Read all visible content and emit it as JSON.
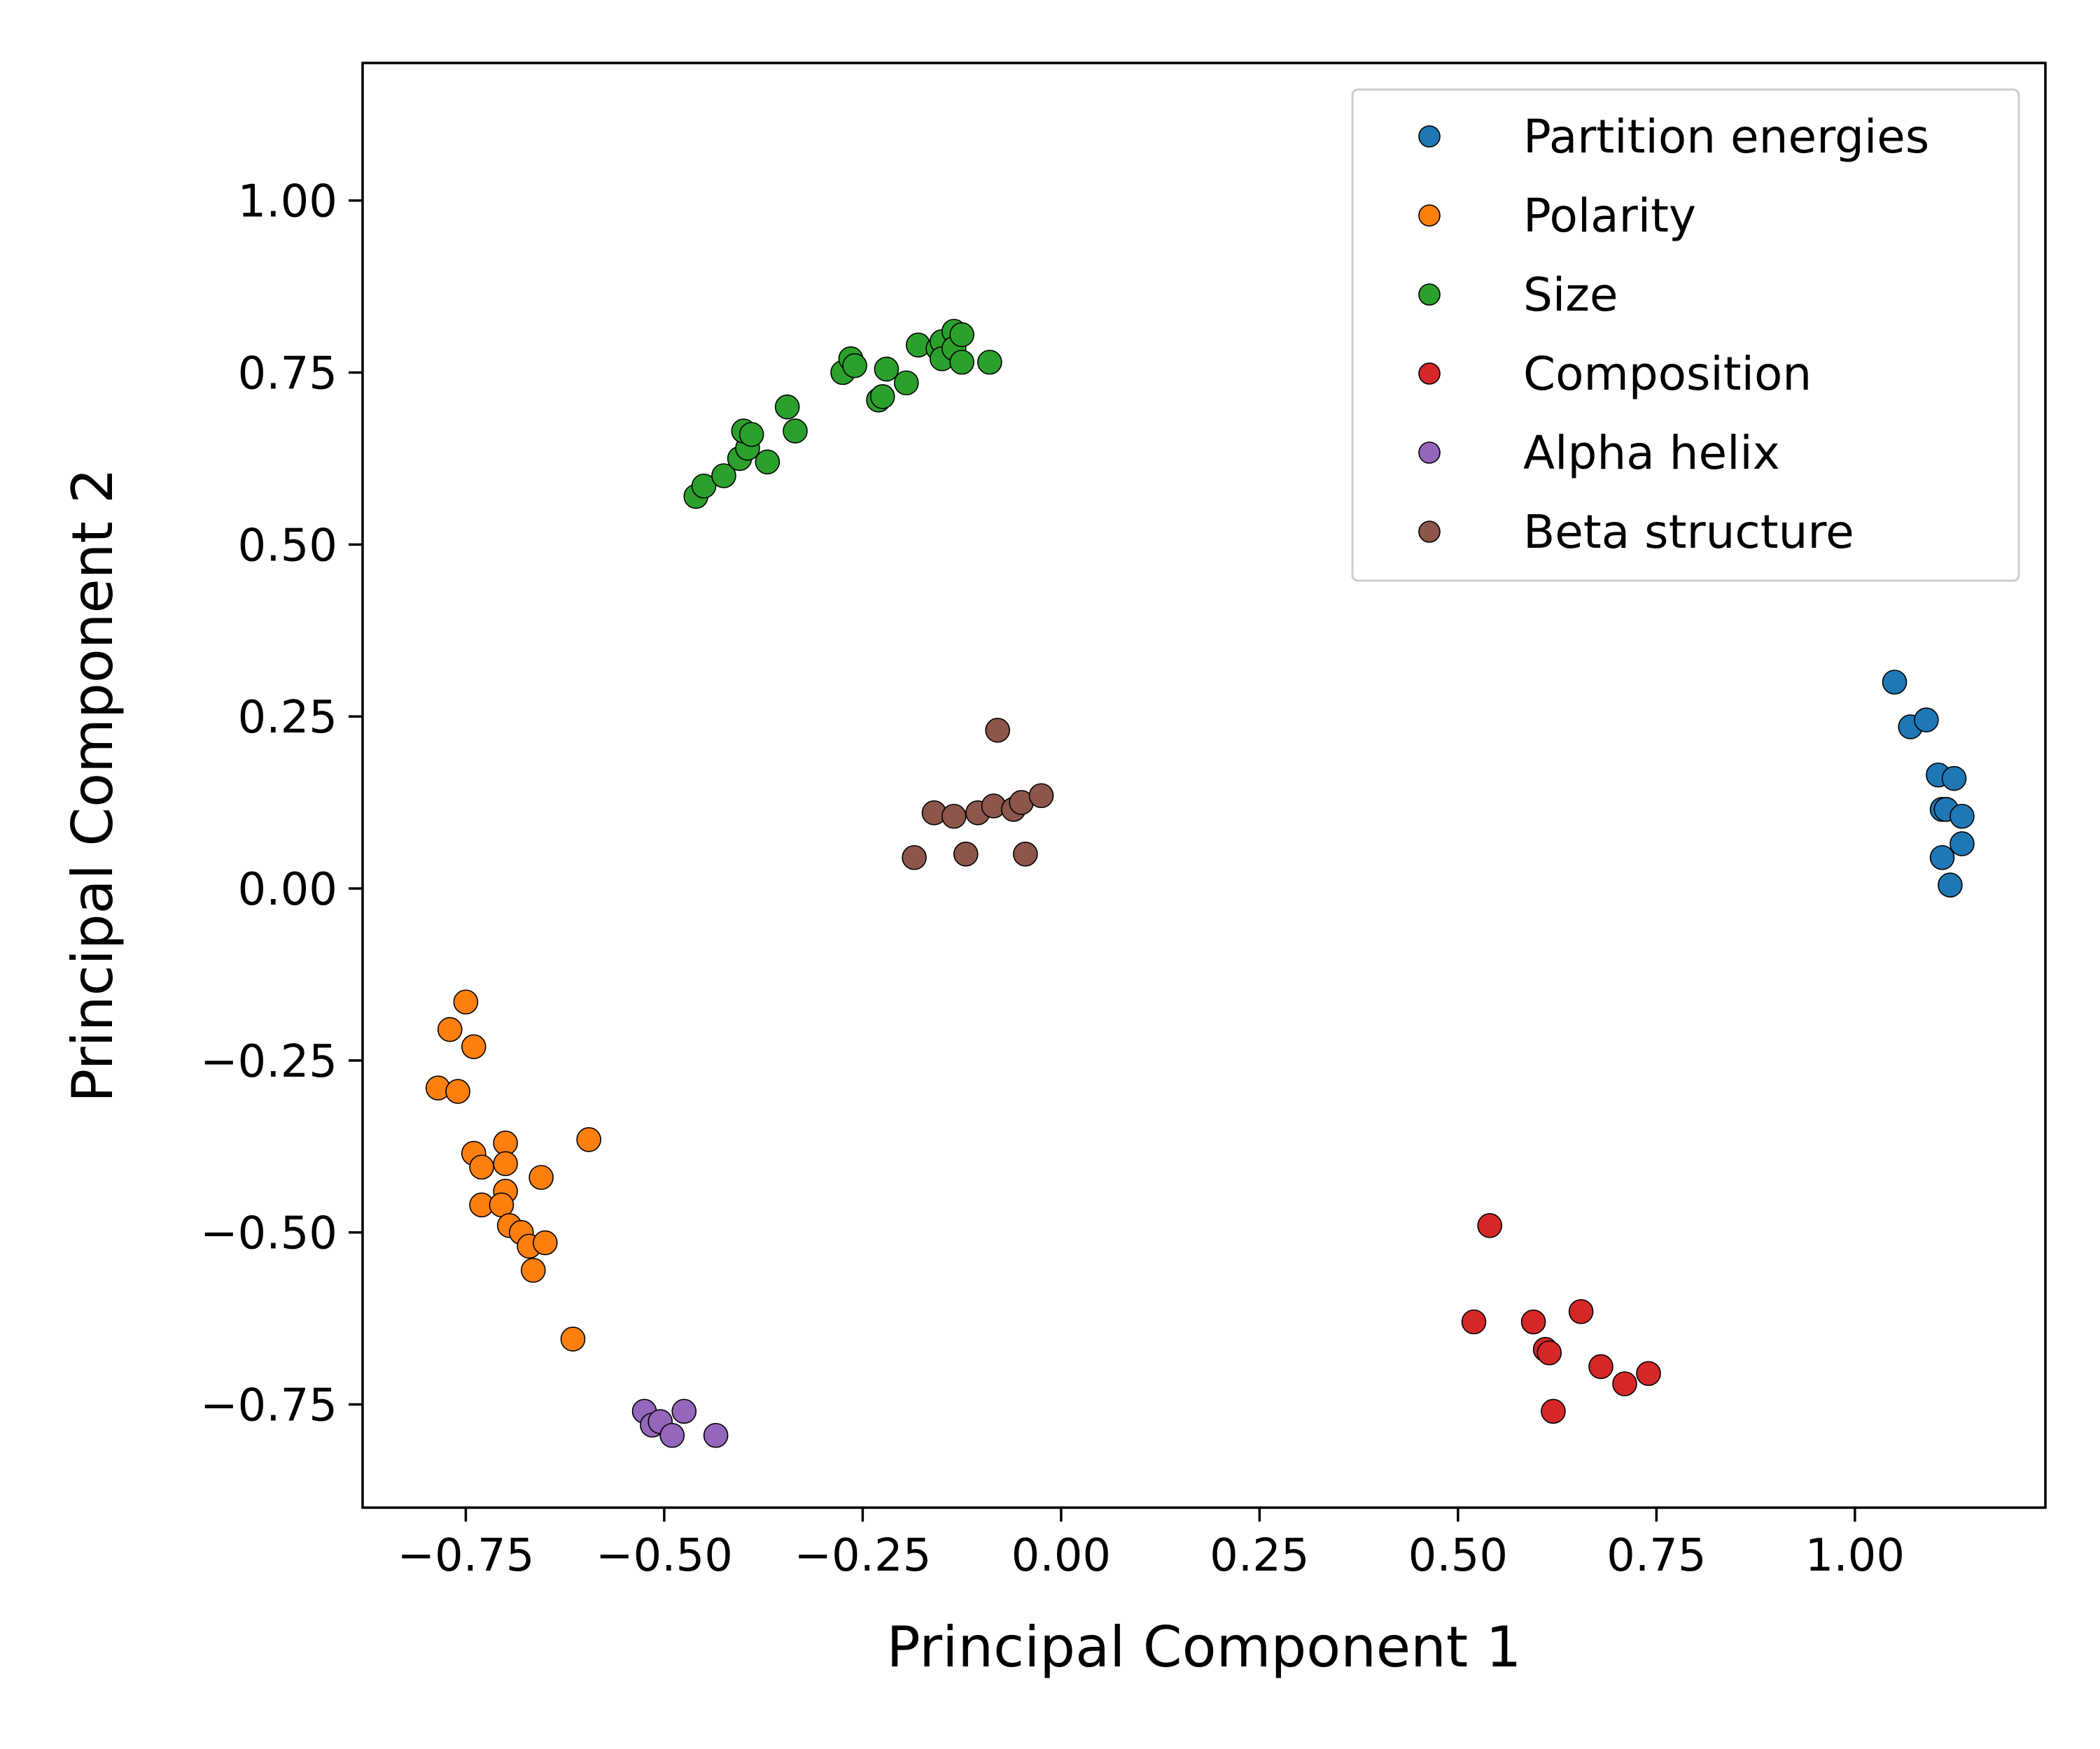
{
  "chart_data": {
    "type": "scatter",
    "title": "",
    "xlabel": "Principal Component 1",
    "ylabel": "Principal Component 2",
    "xlim": [
      -0.88,
      1.24
    ],
    "ylim": [
      -0.9,
      1.2
    ],
    "xticks": [
      -0.75,
      -0.5,
      -0.25,
      0.0,
      0.25,
      0.5,
      0.75,
      1.0
    ],
    "xtick_labels": [
      "−0.75",
      "−0.50",
      "−0.25",
      "0.00",
      "0.25",
      "0.50",
      "0.75",
      "1.00"
    ],
    "yticks": [
      -0.75,
      -0.5,
      -0.25,
      0.0,
      0.25,
      0.5,
      0.75,
      1.0
    ],
    "ytick_labels": [
      "−0.75",
      "−0.50",
      "−0.25",
      "0.00",
      "0.25",
      "0.50",
      "0.75",
      "1.00"
    ],
    "grid": false,
    "legend_position": "top-right",
    "series": [
      {
        "name": "Partition energies",
        "color": "#1f77b4",
        "points": [
          [
            1.05,
            0.3
          ],
          [
            1.07,
            0.235
          ],
          [
            1.09,
            0.245
          ],
          [
            1.105,
            0.165
          ],
          [
            1.11,
            0.115
          ],
          [
            1.115,
            0.115
          ],
          [
            1.125,
            0.16
          ],
          [
            1.135,
            0.105
          ],
          [
            1.135,
            0.065
          ],
          [
            1.11,
            0.045
          ],
          [
            1.12,
            0.005
          ]
        ]
      },
      {
        "name": "Polarity",
        "color": "#ff7f0e",
        "points": [
          [
            -0.75,
            -0.165
          ],
          [
            -0.77,
            -0.205
          ],
          [
            -0.74,
            -0.23
          ],
          [
            -0.785,
            -0.29
          ],
          [
            -0.76,
            -0.295
          ],
          [
            -0.74,
            -0.385
          ],
          [
            -0.73,
            -0.405
          ],
          [
            -0.7,
            -0.37
          ],
          [
            -0.7,
            -0.4
          ],
          [
            -0.655,
            -0.42
          ],
          [
            -0.595,
            -0.365
          ],
          [
            -0.73,
            -0.46
          ],
          [
            -0.7,
            -0.44
          ],
          [
            -0.705,
            -0.46
          ],
          [
            -0.695,
            -0.49
          ],
          [
            -0.68,
            -0.5
          ],
          [
            -0.67,
            -0.52
          ],
          [
            -0.65,
            -0.515
          ],
          [
            -0.665,
            -0.555
          ],
          [
            -0.615,
            -0.655
          ]
        ]
      },
      {
        "name": "Size",
        "color": "#2ca02c",
        "points": [
          [
            -0.46,
            0.57
          ],
          [
            -0.45,
            0.585
          ],
          [
            -0.425,
            0.6
          ],
          [
            -0.405,
            0.625
          ],
          [
            -0.395,
            0.64
          ],
          [
            -0.4,
            0.665
          ],
          [
            -0.39,
            0.66
          ],
          [
            -0.37,
            0.62
          ],
          [
            -0.345,
            0.7
          ],
          [
            -0.335,
            0.665
          ],
          [
            -0.275,
            0.75
          ],
          [
            -0.265,
            0.77
          ],
          [
            -0.26,
            0.76
          ],
          [
            -0.23,
            0.71
          ],
          [
            -0.225,
            0.715
          ],
          [
            -0.22,
            0.755
          ],
          [
            -0.195,
            0.735
          ],
          [
            -0.18,
            0.79
          ],
          [
            -0.155,
            0.785
          ],
          [
            -0.15,
            0.795
          ],
          [
            -0.15,
            0.77
          ],
          [
            -0.135,
            0.81
          ],
          [
            -0.135,
            0.785
          ],
          [
            -0.125,
            0.805
          ],
          [
            -0.125,
            0.765
          ],
          [
            -0.09,
            0.765
          ]
        ]
      },
      {
        "name": "Composition",
        "color": "#d62728",
        "points": [
          [
            0.54,
            -0.49
          ],
          [
            0.52,
            -0.63
          ],
          [
            0.595,
            -0.63
          ],
          [
            0.655,
            -0.615
          ],
          [
            0.61,
            -0.67
          ],
          [
            0.615,
            -0.675
          ],
          [
            0.68,
            -0.695
          ],
          [
            0.71,
            -0.72
          ],
          [
            0.74,
            -0.705
          ],
          [
            0.62,
            -0.76
          ]
        ]
      },
      {
        "name": "Alpha helix",
        "color": "#9467bd",
        "points": [
          [
            -0.525,
            -0.76
          ],
          [
            -0.515,
            -0.78
          ],
          [
            -0.505,
            -0.775
          ],
          [
            -0.49,
            -0.795
          ],
          [
            -0.475,
            -0.76
          ],
          [
            -0.435,
            -0.795
          ]
        ]
      },
      {
        "name": "Beta structure",
        "color": "#8c564b",
        "points": [
          [
            -0.08,
            0.23
          ],
          [
            -0.185,
            0.045
          ],
          [
            -0.16,
            0.11
          ],
          [
            -0.135,
            0.105
          ],
          [
            -0.12,
            0.05
          ],
          [
            -0.105,
            0.11
          ],
          [
            -0.085,
            0.12
          ],
          [
            -0.06,
            0.115
          ],
          [
            -0.05,
            0.125
          ],
          [
            -0.045,
            0.05
          ],
          [
            -0.025,
            0.135
          ]
        ]
      }
    ]
  }
}
